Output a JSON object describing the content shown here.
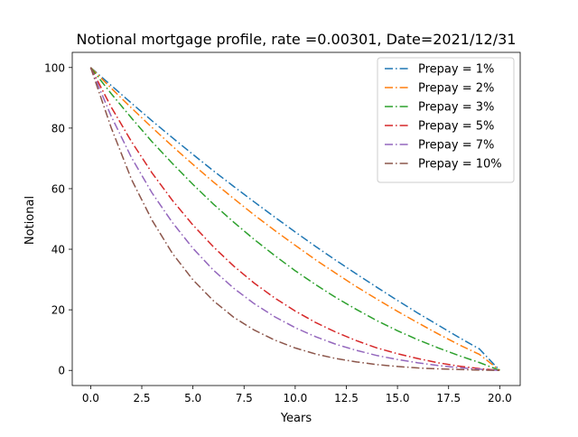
{
  "chart_data": {
    "type": "line",
    "title": "Notional mortgage profile, rate =0.00301, Date=2021/12/31",
    "xlabel": "Years",
    "ylabel": "Notional",
    "xlim": [
      -0.9,
      21.0
    ],
    "ylim": [
      -5,
      105
    ],
    "xticks": [
      0.0,
      2.5,
      5.0,
      7.5,
      10.0,
      12.5,
      15.0,
      17.5,
      20.0
    ],
    "xtick_labels": [
      "0.0",
      "2.5",
      "5.0",
      "7.5",
      "10.0",
      "12.5",
      "15.0",
      "17.5",
      "20.0"
    ],
    "yticks": [
      0,
      20,
      40,
      60,
      80,
      100
    ],
    "ytick_labels": [
      "0",
      "20",
      "40",
      "60",
      "80",
      "100"
    ],
    "grid": false,
    "legend_position": "upper right",
    "line_style": "dash-dot",
    "x": [
      0,
      1,
      2,
      3,
      4,
      5,
      6,
      7,
      8,
      9,
      10,
      11,
      12,
      13,
      14,
      15,
      16,
      17,
      18,
      19,
      20
    ],
    "series": [
      {
        "name": "Prepay = 1%",
        "color": "#1f77b4",
        "values": [
          100,
          94.1,
          88.2,
          82.4,
          76.8,
          71.3,
          65.9,
          60.7,
          55.6,
          50.6,
          45.7,
          40.9,
          36.3,
          31.8,
          27.4,
          23.1,
          18.9,
          14.9,
          10.9,
          7.1,
          0
        ]
      },
      {
        "name": "Prepay = 2%",
        "color": "#ff7f0e",
        "values": [
          100,
          93.2,
          86.6,
          80.2,
          74.0,
          68.0,
          62.2,
          56.7,
          51.3,
          46.2,
          41.3,
          36.5,
          32.0,
          27.6,
          23.5,
          19.5,
          15.7,
          12.0,
          8.5,
          5.3,
          0
        ]
      },
      {
        "name": "Prepay = 3%",
        "color": "#2ca02c",
        "values": [
          100,
          91.4,
          83.3,
          75.5,
          68.3,
          61.4,
          54.9,
          48.9,
          43.2,
          37.9,
          32.9,
          28.3,
          24.0,
          20.1,
          16.4,
          13.1,
          10.1,
          7.4,
          4.9,
          2.6,
          0
        ]
      },
      {
        "name": "Prepay = 5%",
        "color": "#d62728",
        "values": [
          100,
          87.0,
          75.5,
          65.2,
          56.1,
          48.0,
          40.8,
          34.4,
          28.8,
          23.9,
          19.6,
          15.8,
          12.6,
          9.8,
          7.4,
          5.5,
          3.9,
          2.5,
          1.4,
          0.6,
          0
        ]
      },
      {
        "name": "Prepay = 7%",
        "color": "#9467bd",
        "values": [
          100,
          84.0,
          70.2,
          58.6,
          48.8,
          40.3,
          33.1,
          27.1,
          22.0,
          17.7,
          14.1,
          11.1,
          8.6,
          6.6,
          4.9,
          3.6,
          2.5,
          1.6,
          0.9,
          0.4,
          0
        ]
      },
      {
        "name": "Prepay = 10%",
        "color": "#8c564b",
        "values": [
          100,
          80.2,
          63.0,
          49.6,
          38.6,
          29.9,
          23.0,
          17.5,
          13.3,
          10.0,
          7.4,
          5.4,
          3.9,
          2.8,
          1.9,
          1.3,
          0.8,
          0.5,
          0.3,
          0.1,
          0
        ]
      }
    ]
  }
}
